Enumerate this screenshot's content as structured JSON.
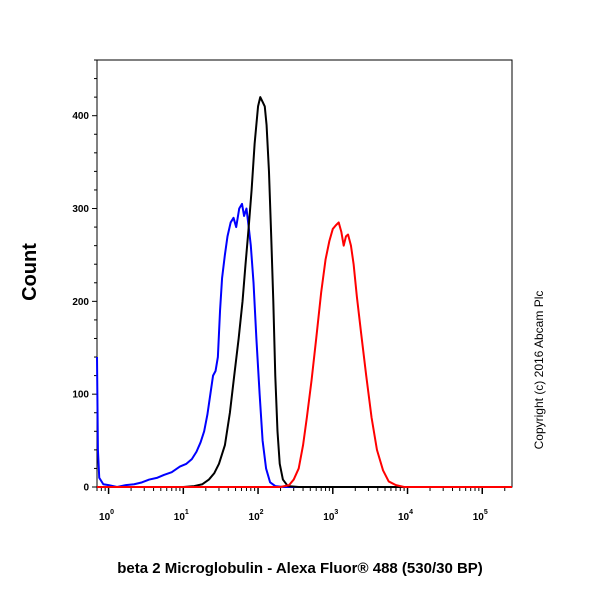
{
  "chart_data": {
    "type": "line",
    "title": "",
    "xlabel": "beta 2 Microglobulin - Alexa Fluor® 488 (530/30 BP)",
    "ylabel": "Count",
    "x_scale": "log",
    "xlim": [
      0.7,
      250000
    ],
    "ylim": [
      0,
      460
    ],
    "x_ticks": [
      {
        "value": 1,
        "base": "10",
        "exp": "0"
      },
      {
        "value": 10,
        "base": "10",
        "exp": "1"
      },
      {
        "value": 100,
        "base": "10",
        "exp": "2"
      },
      {
        "value": 1000,
        "base": "10",
        "exp": "3"
      },
      {
        "value": 10000,
        "base": "10",
        "exp": "4"
      },
      {
        "value": 100000,
        "base": "10",
        "exp": "5"
      }
    ],
    "y_ticks": [
      0,
      100,
      200,
      300,
      400
    ],
    "annotation": "Copyright (c) 2016 Abcam Plc",
    "series": [
      {
        "color": "#0000ff",
        "points": [
          [
            0.7,
            140
          ],
          [
            0.72,
            40
          ],
          [
            0.75,
            10
          ],
          [
            0.85,
            3
          ],
          [
            1.0,
            2
          ],
          [
            1.3,
            0
          ],
          [
            1.7,
            2
          ],
          [
            2.2,
            3
          ],
          [
            2.8,
            5
          ],
          [
            3.5,
            8
          ],
          [
            4.5,
            10
          ],
          [
            5.5,
            13
          ],
          [
            7,
            16
          ],
          [
            9,
            22
          ],
          [
            11,
            25
          ],
          [
            13,
            30
          ],
          [
            15,
            38
          ],
          [
            17,
            48
          ],
          [
            19,
            60
          ],
          [
            21,
            78
          ],
          [
            23,
            100
          ],
          [
            25,
            120
          ],
          [
            27,
            125
          ],
          [
            29,
            140
          ],
          [
            31,
            190
          ],
          [
            33,
            225
          ],
          [
            36,
            250
          ],
          [
            39,
            270
          ],
          [
            43,
            285
          ],
          [
            47,
            290
          ],
          [
            51,
            280
          ],
          [
            56,
            300
          ],
          [
            61,
            305
          ],
          [
            65,
            292
          ],
          [
            70,
            300
          ],
          [
            75,
            280
          ],
          [
            80,
            260
          ],
          [
            87,
            220
          ],
          [
            95,
            160
          ],
          [
            105,
            100
          ],
          [
            115,
            50
          ],
          [
            128,
            20
          ],
          [
            145,
            5
          ],
          [
            170,
            1
          ],
          [
            220,
            0
          ],
          [
            400,
            0
          ],
          [
            100000,
            0
          ],
          [
            250000,
            0
          ]
        ]
      },
      {
        "color": "#000000",
        "points": [
          [
            0.7,
            0
          ],
          [
            5,
            0
          ],
          [
            10,
            0
          ],
          [
            14,
            1
          ],
          [
            18,
            3
          ],
          [
            22,
            8
          ],
          [
            26,
            15
          ],
          [
            30,
            25
          ],
          [
            36,
            45
          ],
          [
            42,
            80
          ],
          [
            48,
            120
          ],
          [
            55,
            160
          ],
          [
            62,
            200
          ],
          [
            68,
            240
          ],
          [
            75,
            280
          ],
          [
            82,
            320
          ],
          [
            90,
            370
          ],
          [
            100,
            410
          ],
          [
            107,
            420
          ],
          [
            115,
            415
          ],
          [
            123,
            410
          ],
          [
            130,
            390
          ],
          [
            140,
            340
          ],
          [
            150,
            270
          ],
          [
            160,
            200
          ],
          [
            170,
            120
          ],
          [
            182,
            60
          ],
          [
            195,
            25
          ],
          [
            215,
            8
          ],
          [
            250,
            1
          ],
          [
            350,
            0
          ],
          [
            250000,
            0
          ]
        ]
      },
      {
        "color": "#ff0000",
        "points": [
          [
            0.7,
            0
          ],
          [
            200,
            0
          ],
          [
            260,
            2
          ],
          [
            300,
            8
          ],
          [
            350,
            20
          ],
          [
            400,
            45
          ],
          [
            450,
            75
          ],
          [
            520,
            115
          ],
          [
            600,
            160
          ],
          [
            700,
            210
          ],
          [
            800,
            245
          ],
          [
            900,
            265
          ],
          [
            1000,
            278
          ],
          [
            1100,
            282
          ],
          [
            1200,
            285
          ],
          [
            1300,
            275
          ],
          [
            1400,
            260
          ],
          [
            1500,
            270
          ],
          [
            1600,
            272
          ],
          [
            1750,
            260
          ],
          [
            1900,
            240
          ],
          [
            2100,
            205
          ],
          [
            2400,
            165
          ],
          [
            2800,
            120
          ],
          [
            3300,
            75
          ],
          [
            3900,
            40
          ],
          [
            4700,
            18
          ],
          [
            5600,
            6
          ],
          [
            7000,
            2
          ],
          [
            9000,
            0
          ],
          [
            250000,
            0
          ]
        ]
      }
    ]
  }
}
